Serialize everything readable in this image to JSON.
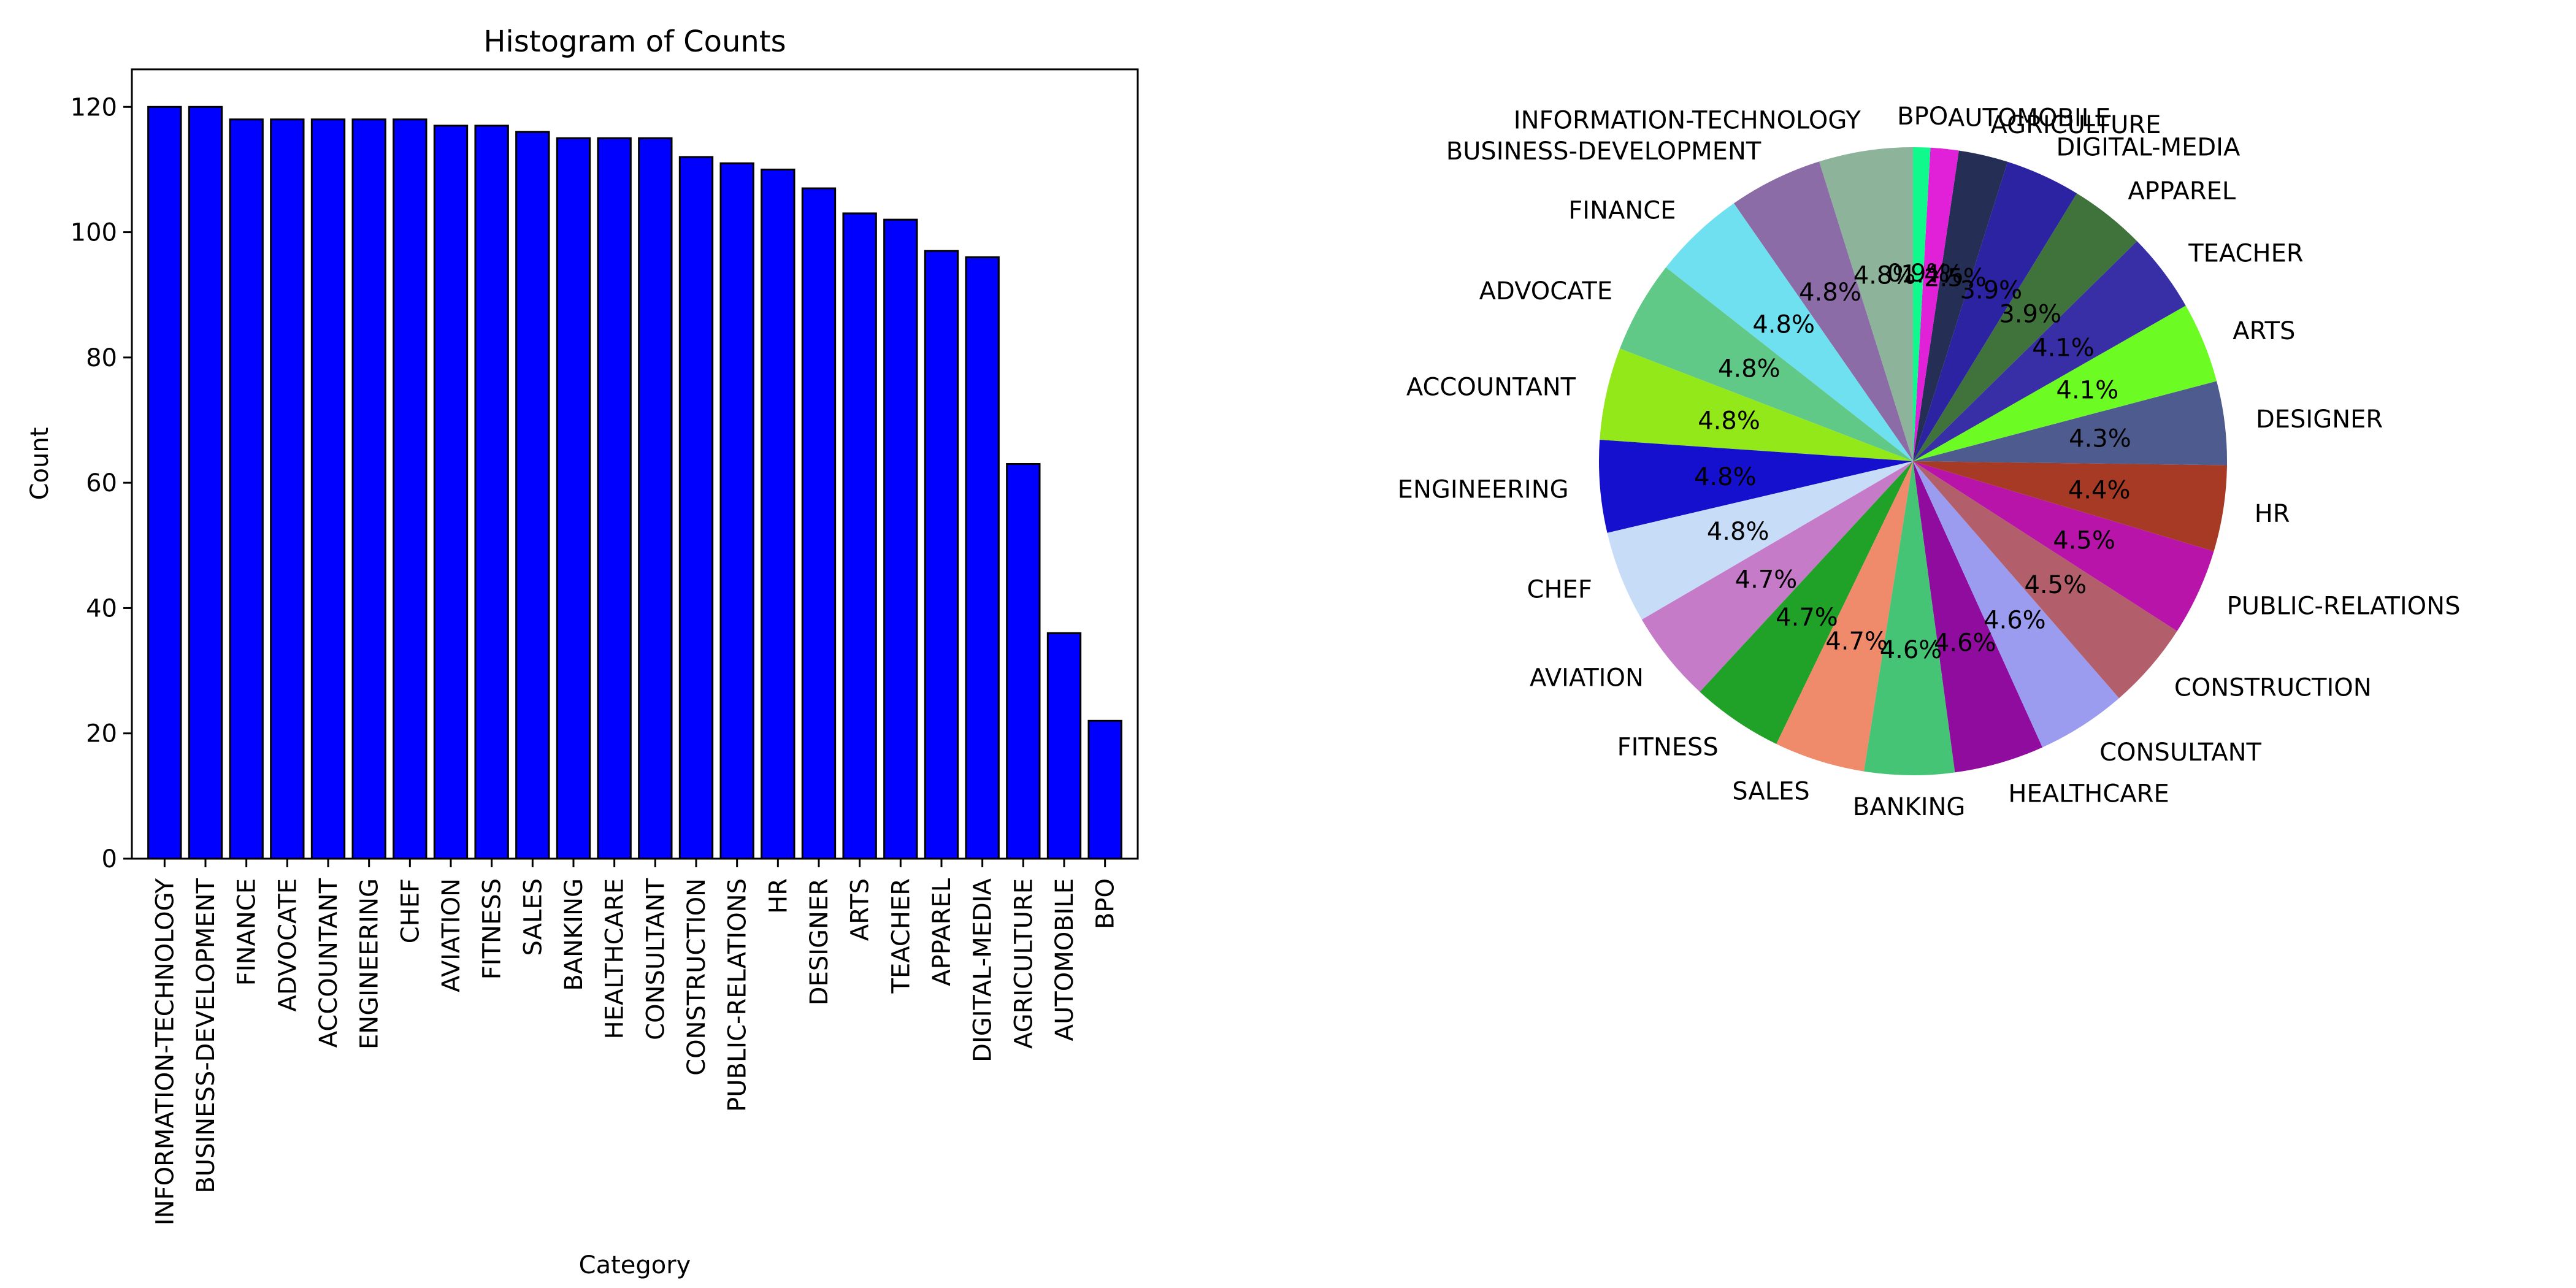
{
  "chart_data": [
    {
      "type": "bar",
      "title": "Histogram of Counts",
      "xlabel": "Category",
      "ylabel": "Count",
      "ylim": [
        0,
        126
      ],
      "yticks": [
        0,
        20,
        40,
        60,
        80,
        100,
        120
      ],
      "bar_color": "#0000ff",
      "edge_color": "#000000",
      "categories": [
        "INFORMATION-TECHNOLOGY",
        "BUSINESS-DEVELOPMENT",
        "FINANCE",
        "ADVOCATE",
        "ACCOUNTANT",
        "ENGINEERING",
        "CHEF",
        "AVIATION",
        "FITNESS",
        "SALES",
        "BANKING",
        "HEALTHCARE",
        "CONSULTANT",
        "CONSTRUCTION",
        "PUBLIC-RELATIONS",
        "HR",
        "DESIGNER",
        "ARTS",
        "TEACHER",
        "APPAREL",
        "DIGITAL-MEDIA",
        "AGRICULTURE",
        "AUTOMOBILE",
        "BPO"
      ],
      "values": [
        120,
        120,
        118,
        118,
        118,
        118,
        118,
        117,
        117,
        116,
        115,
        115,
        115,
        112,
        111,
        110,
        107,
        103,
        102,
        97,
        96,
        63,
        36,
        22
      ]
    },
    {
      "type": "pie",
      "start_angle_deg": 90,
      "direction": "counterclockwise",
      "slices": [
        {
          "label": "INFORMATION-TECHNOLOGY",
          "value": 120,
          "pct": "4.8%",
          "color": "#8db39a"
        },
        {
          "label": "BUSINESS-DEVELOPMENT",
          "value": 120,
          "pct": "4.8%",
          "color": "#8b6ca6"
        },
        {
          "label": "FINANCE",
          "value": 118,
          "pct": "4.8%",
          "color": "#6ee0f0"
        },
        {
          "label": "ADVOCATE",
          "value": 118,
          "pct": "4.8%",
          "color": "#60c987"
        },
        {
          "label": "ACCOUNTANT",
          "value": 118,
          "pct": "4.8%",
          "color": "#93e81a"
        },
        {
          "label": "ENGINEERING",
          "value": 118,
          "pct": "4.8%",
          "color": "#1510cd"
        },
        {
          "label": "CHEF",
          "value": 118,
          "pct": "4.8%",
          "color": "#c6dcf7"
        },
        {
          "label": "AVIATION",
          "value": 117,
          "pct": "4.7%",
          "color": "#c57bc8"
        },
        {
          "label": "FITNESS",
          "value": 117,
          "pct": "4.7%",
          "color": "#20a127"
        },
        {
          "label": "SALES",
          "value": 116,
          "pct": "4.7%",
          "color": "#ef8a6b"
        },
        {
          "label": "BANKING",
          "value": 115,
          "pct": "4.6%",
          "color": "#44c474"
        },
        {
          "label": "HEALTHCARE",
          "value": 115,
          "pct": "4.6%",
          "color": "#900c9e"
        },
        {
          "label": "CONSULTANT",
          "value": 115,
          "pct": "4.6%",
          "color": "#9b9bef"
        },
        {
          "label": "CONSTRUCTION",
          "value": 112,
          "pct": "4.5%",
          "color": "#b35f6b"
        },
        {
          "label": "PUBLIC-RELATIONS",
          "value": 111,
          "pct": "4.5%",
          "color": "#b914aa"
        },
        {
          "label": "HR",
          "value": 110,
          "pct": "4.4%",
          "color": "#a73a24"
        },
        {
          "label": "DESIGNER",
          "value": 107,
          "pct": "4.3%",
          "color": "#4e5b8e"
        },
        {
          "label": "ARTS",
          "value": 103,
          "pct": "4.1%",
          "color": "#6cfb22"
        },
        {
          "label": "TEACHER",
          "value": 102,
          "pct": "4.1%",
          "color": "#382ea6"
        },
        {
          "label": "APPAREL",
          "value": 97,
          "pct": "3.9%",
          "color": "#3f733b"
        },
        {
          "label": "DIGITAL-MEDIA",
          "value": 96,
          "pct": "3.9%",
          "color": "#2b23a2"
        },
        {
          "label": "AGRICULTURE",
          "value": 63,
          "pct": "2.5%",
          "color": "#252e55"
        },
        {
          "label": "AUTOMOBILE",
          "value": 36,
          "pct": "1.4%",
          "color": "#e021d8"
        },
        {
          "label": "BPO",
          "value": 22,
          "pct": "0.9%",
          "color": "#0ff98c"
        }
      ]
    }
  ]
}
